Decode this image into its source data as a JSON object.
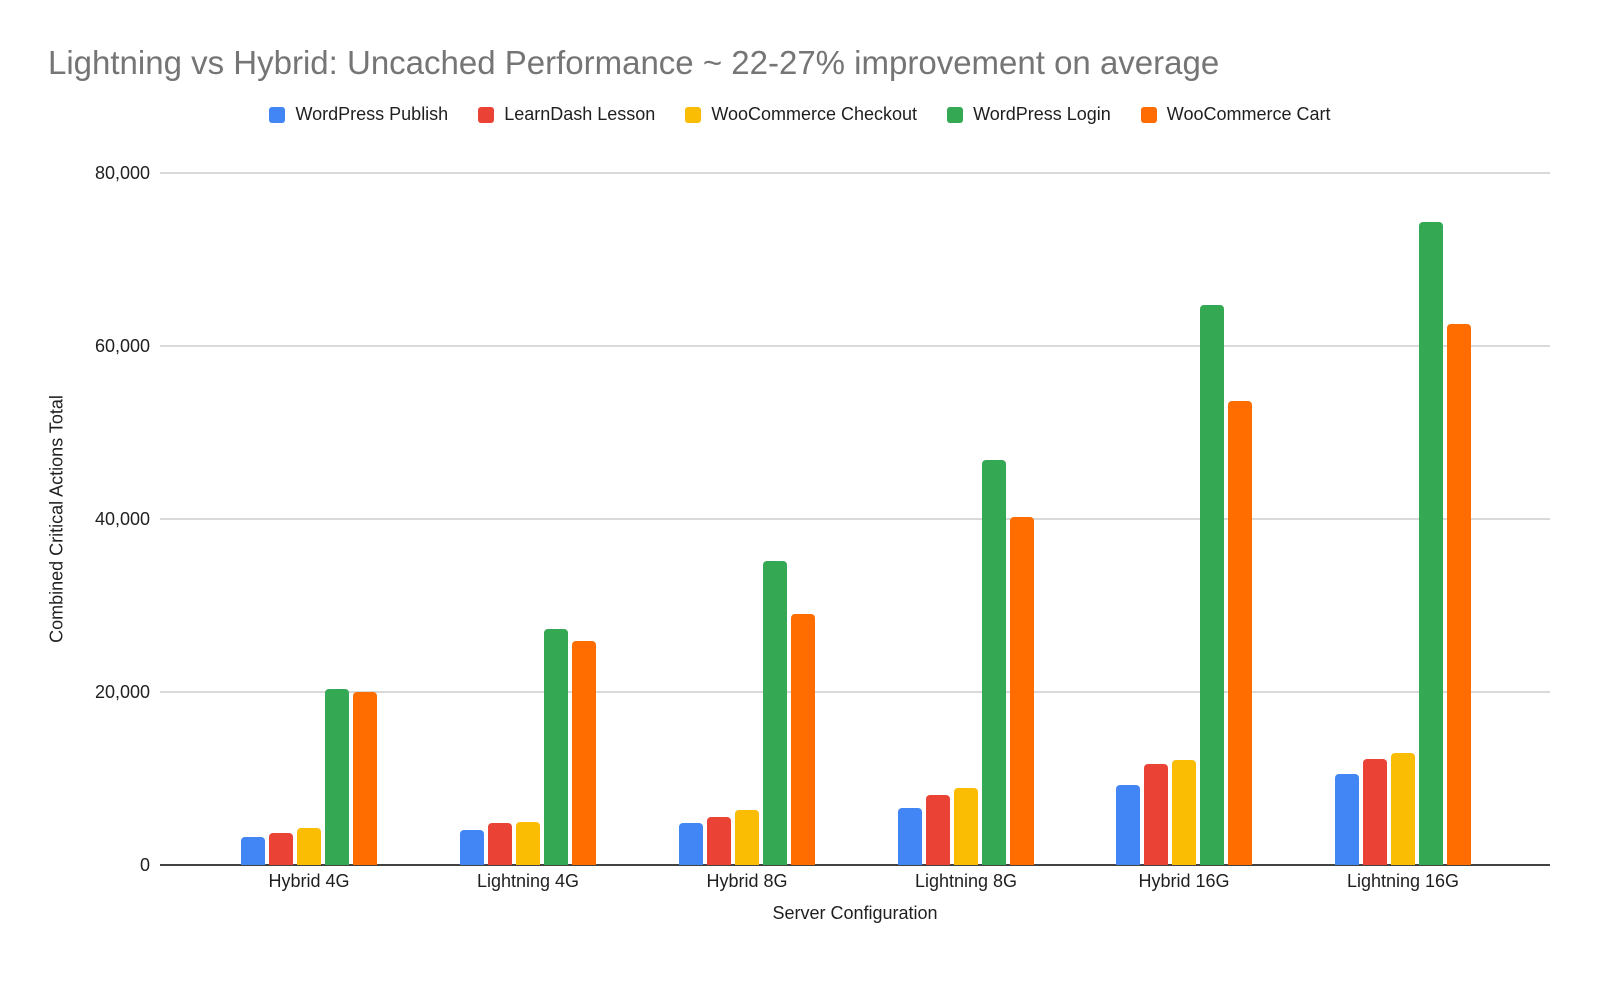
{
  "chart_data": {
    "type": "bar",
    "title": "Lightning vs Hybrid: Uncached Performance ~ 22-27% improvement on average",
    "xlabel": "Server Configuration",
    "ylabel": "Combined Critical Actions Total",
    "categories": [
      "Hybrid 4G",
      "Lightning 4G",
      "Hybrid 8G",
      "Lightning 8G",
      "Hybrid 16G",
      "Lightning 16G"
    ],
    "series": [
      {
        "name": "WordPress Publish",
        "color": "#4285F4",
        "values": [
          3200,
          4100,
          4900,
          6600,
          9200,
          10500
        ]
      },
      {
        "name": "LearnDash Lesson",
        "color": "#EA4335",
        "values": [
          3700,
          4800,
          5600,
          8100,
          11700,
          12200
        ]
      },
      {
        "name": "WooCommerce Checkout",
        "color": "#FBBC04",
        "values": [
          4300,
          5000,
          6400,
          8900,
          12100,
          12900
        ]
      },
      {
        "name": "WordPress Login",
        "color": "#34A853",
        "values": [
          20300,
          27300,
          35100,
          46800,
          64700,
          74300
        ]
      },
      {
        "name": "WooCommerce Cart",
        "color": "#FF6D01",
        "values": [
          20000,
          25900,
          29000,
          40200,
          53600,
          62600
        ]
      }
    ],
    "ylim": [
      0,
      80000
    ],
    "yticks": [
      {
        "value": 0,
        "label": "0"
      },
      {
        "value": 20000,
        "label": "20,000"
      },
      {
        "value": 40000,
        "label": "40,000"
      },
      {
        "value": 60000,
        "label": "60,000"
      },
      {
        "value": 80000,
        "label": "80,000"
      }
    ],
    "grid": true,
    "legend_position": "top",
    "background_color": "#ffffff",
    "title_color": "#757575"
  }
}
